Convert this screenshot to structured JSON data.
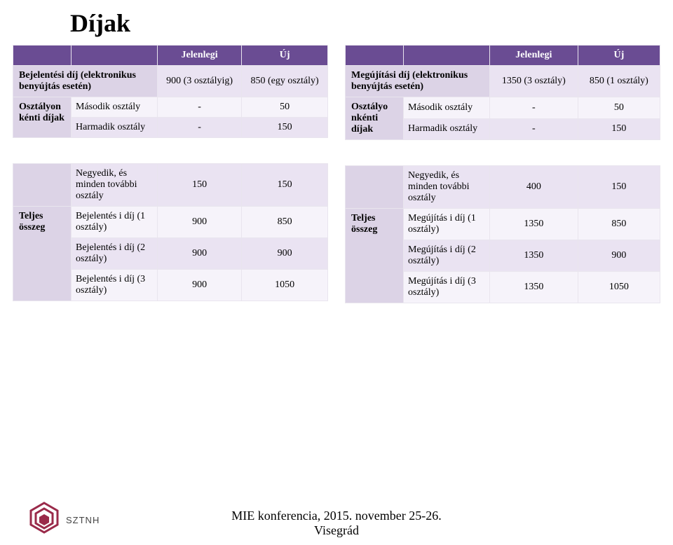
{
  "title": "Díjak",
  "colors": {
    "header_bg": "#6a4c93",
    "label_bg": "#dcd3e6",
    "row_a": "#eae3f2",
    "row_b": "#f6f3fa",
    "white": "#ffffff",
    "cell_border": "#e9e5ee"
  },
  "left_table": {
    "head": {
      "c2": "Jelenlegi",
      "c3": "Új"
    },
    "rows": [
      {
        "l": "Bejelentési díj (elektronikus benyújtás esetén)",
        "cur": "900 (3 osztályig)",
        "new": "850 (egy osztály)",
        "span": true,
        "band": "a"
      },
      {
        "g": "Osztályon kénti díjak",
        "l": "Második osztály",
        "cur": "-",
        "new": "50",
        "band": "b"
      },
      {
        "l": "Harmadik osztály",
        "cur": "-",
        "new": "150",
        "band": "a"
      },
      {
        "spacer": true
      },
      {
        "l": "Negyedik, és minden további osztály",
        "cur": "150",
        "new": "150",
        "band": "a"
      },
      {
        "g": "Teljes összeg",
        "l": "Bejelentés i díj (1 osztály)",
        "cur": "900",
        "new": "850",
        "band": "b"
      },
      {
        "l": "Bejelentés i díj (2 osztály)",
        "cur": "900",
        "new": "900",
        "band": "a"
      },
      {
        "l": "Bejelentés i díj (3 osztály)",
        "cur": "900",
        "new": "1050",
        "band": "b"
      }
    ]
  },
  "right_table": {
    "head": {
      "c2": "Jelenlegi",
      "c3": "Új"
    },
    "rows": [
      {
        "l": "Megújítási díj (elektronikus benyújtás esetén)",
        "cur": "1350 (3 osztály)",
        "new": "850 (1 osztály)",
        "span": true,
        "band": "a"
      },
      {
        "g": "Osztályo nkénti díjak",
        "l": "Második osztály",
        "cur": "-",
        "new": "50",
        "band": "b"
      },
      {
        "l": "Harmadik osztály",
        "cur": "-",
        "new": "150",
        "band": "a"
      },
      {
        "spacer": true
      },
      {
        "l": "Negyedik, és minden további osztály",
        "cur": "400",
        "new": "150",
        "band": "a"
      },
      {
        "g": "Teljes összeg",
        "l": "Megújítás i díj (1 osztály)",
        "cur": "1350",
        "new": "850",
        "band": "b"
      },
      {
        "l": "Megújítás i díj (2 osztály)",
        "cur": "1350",
        "new": "900",
        "band": "a"
      },
      {
        "l": "Megújítás i díj (3 osztály)",
        "cur": "1350",
        "new": "1050",
        "band": "b"
      }
    ]
  },
  "footer": {
    "line1": "MIE konferencia, 2015. november 25-26.",
    "line2": "Visegrád"
  },
  "logo_text": "SZTNH",
  "logo_color": "#9a2a4a"
}
